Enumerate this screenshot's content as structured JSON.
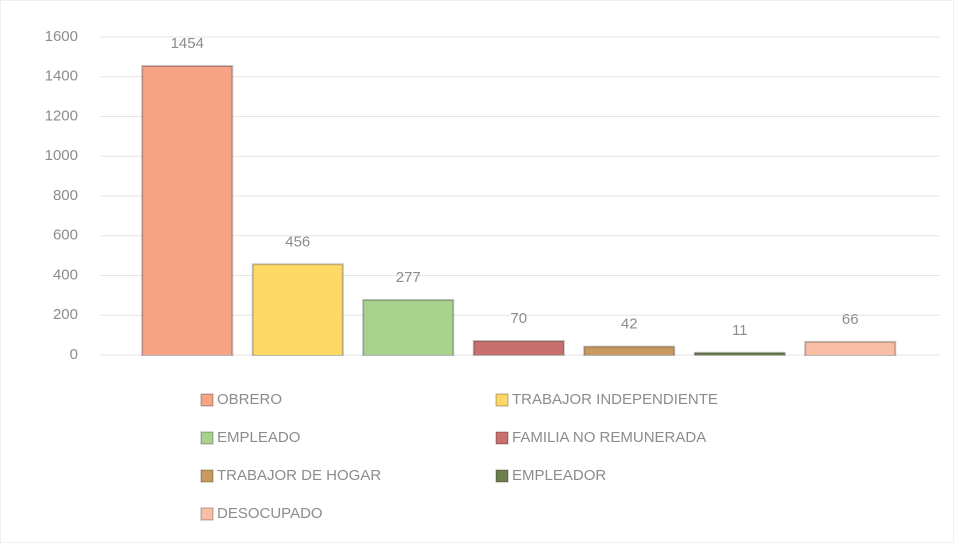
{
  "chart_data": {
    "type": "bar",
    "categories": [
      "OBRERO",
      "TRABAJOR INDEPENDIENTE",
      "EMPLEADO",
      "FAMILIA NO REMUNERADA",
      "TRABAJOR DE HOGAR",
      "EMPLEADOR",
      "DESOCUPADO"
    ],
    "values": [
      1454,
      456,
      277,
      70,
      42,
      11,
      66
    ],
    "colors": [
      "#f6a386",
      "#ffd966",
      "#a9d18e",
      "#c8706d",
      "#c9995f",
      "#6e7f4c",
      "#f8bfa6"
    ],
    "ylim": [
      0,
      1600
    ],
    "yticks": [
      0,
      200,
      400,
      600,
      800,
      1000,
      1200,
      1400,
      1600
    ],
    "grid": true,
    "legend": "bottom"
  }
}
